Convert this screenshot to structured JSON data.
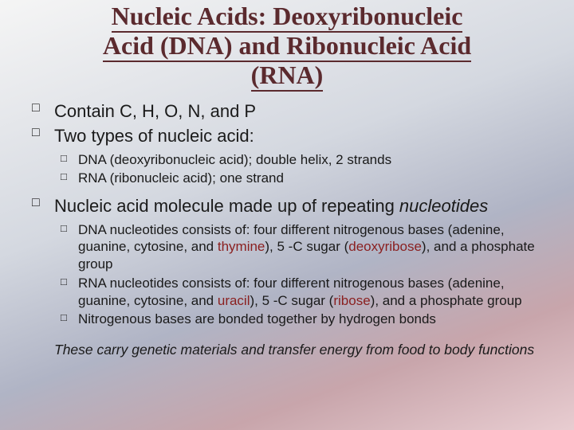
{
  "title": {
    "line1": "Nucleic Acids: Deoxyribonucleic",
    "line2": "Acid (DNA) and Ribonucleic Acid",
    "line3": "(RNA)",
    "color": "#5b2a2e",
    "underline_color": "#5b2a2e",
    "font_family": "Palatino",
    "font_size_pt": 32,
    "font_weight": "bold"
  },
  "highlight_color": "#8a1f1f",
  "body_color": "#1a1a1a",
  "background_gradient": [
    "#f5f5f5",
    "#d4d8e0",
    "#b0b4c5",
    "#c8a5ab",
    "#e8cdd1"
  ],
  "bullets": {
    "b1": "Contain C, H, O, N, and P",
    "b2": "Two types of nucleic acid:",
    "b2_sub": {
      "s1": "DNA (deoxyribonucleic acid); double helix, 2 strands",
      "s2": "RNA (ribonucleic acid); one strand"
    },
    "b3_pre": "Nucleic acid molecule made up of repeating ",
    "b3_ital": "nucleotides",
    "b3_sub": {
      "s1_a": "DNA nucleotides consists of: four different nitrogenous bases (adenine, guanine, cytosine, and ",
      "s1_hl1": "thymine",
      "s1_b": "), 5 -C sugar (",
      "s1_hl2": "deoxyribose",
      "s1_c": "), and a phosphate group",
      "s2_a": "RNA nucleotides consists of: four different nitrogenous bases (adenine, guanine, cytosine, and ",
      "s2_hl1": "uracil",
      "s2_b": "), 5 -C sugar (",
      "s2_hl2": "ribose",
      "s2_c": "), and a phosphate group",
      "s3": "Nitrogenous bases are bonded together by hydrogen bonds"
    }
  },
  "closing": "These carry genetic materials and transfer energy from food to body functions",
  "font_sizes": {
    "top_bullet_pt": 22,
    "sub_bullet_pt": 17,
    "closing_pt": 17.5
  }
}
